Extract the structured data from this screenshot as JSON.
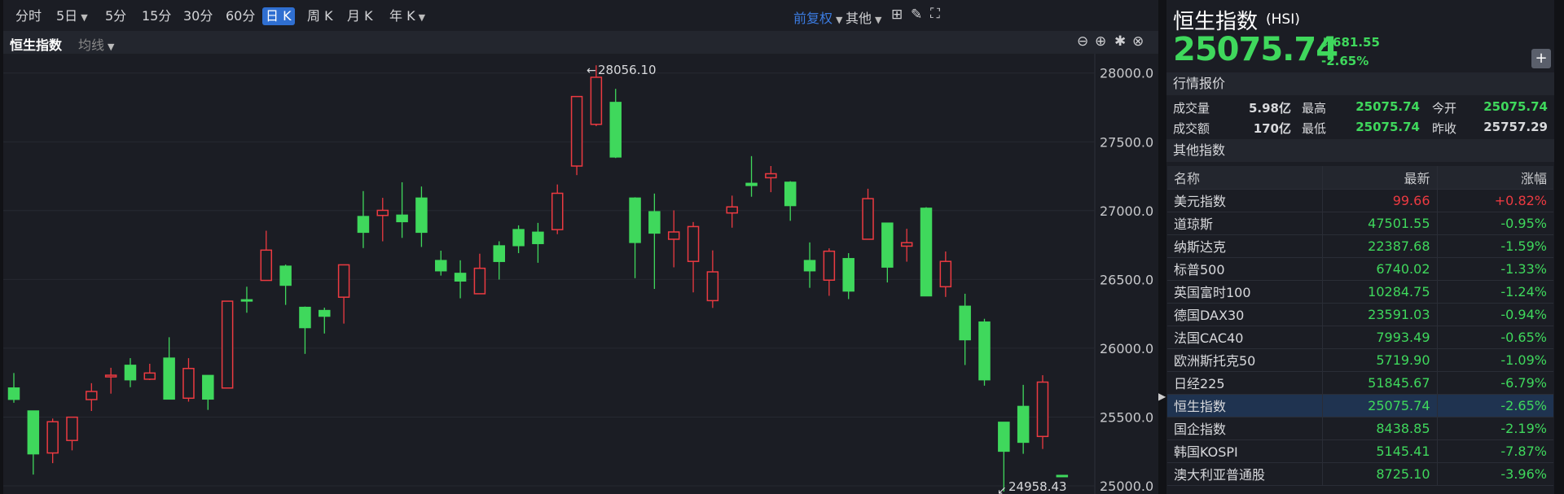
{
  "toolbar": {
    "periods": [
      {
        "label": "分时"
      },
      {
        "label": "5日",
        "dropdown": true
      },
      {
        "label": "5分"
      },
      {
        "label": "15分"
      },
      {
        "label": "30分"
      },
      {
        "label": "60分"
      },
      {
        "label": "日 K",
        "active": true
      },
      {
        "label": "周 K"
      },
      {
        "label": "月 K"
      },
      {
        "label": "年 K",
        "dropdown": true
      }
    ],
    "adjust": "前复权",
    "other": "其他",
    "icons": [
      "layout-grid-icon",
      "pen-icon",
      "fullscreen-icon"
    ]
  },
  "subbar": {
    "title": "恒生指数",
    "indicator": "均线",
    "icons": [
      "zoom-out-icon",
      "zoom-in-icon",
      "settings-icon",
      "close-icon"
    ]
  },
  "colors": {
    "up": "#ec3a41",
    "down": "#3fd85c",
    "accent": "#2f6fd1"
  },
  "chart_data": {
    "type": "candlestick",
    "ylim": [
      24950,
      28100
    ],
    "yticks": [
      "28000.0",
      "27500.0",
      "27000.0",
      "26500.0",
      "26000.0",
      "25500.0",
      "25000.0"
    ],
    "ytick_values": [
      28000,
      27500,
      27000,
      26500,
      26000,
      25500,
      25000
    ],
    "grid": true,
    "max_label": "28056.10",
    "min_label": "24958.43",
    "ohlc": [
      [
        25711,
        25820,
        25604,
        25629
      ],
      [
        25544,
        25544,
        25082,
        25233
      ],
      [
        25239,
        25489,
        25165,
        25466
      ],
      [
        25330,
        25501,
        25258,
        25499
      ],
      [
        25627,
        25746,
        25544,
        25686
      ],
      [
        25792,
        25858,
        25670,
        25804
      ],
      [
        25876,
        25928,
        25717,
        25771
      ],
      [
        25775,
        25887,
        25769,
        25820
      ],
      [
        25928,
        26080,
        25631,
        25631
      ],
      [
        25637,
        25928,
        25612,
        25853
      ],
      [
        25802,
        25804,
        25552,
        25631
      ],
      [
        25711,
        26342,
        25711,
        26342
      ],
      [
        26352,
        26447,
        26258,
        26348
      ],
      [
        26493,
        26854,
        26493,
        26713
      ],
      [
        26596,
        26608,
        26315,
        26458
      ],
      [
        26297,
        26303,
        25959,
        26150
      ],
      [
        26274,
        26295,
        26107,
        26233
      ],
      [
        26371,
        26606,
        26179,
        26606
      ],
      [
        26957,
        27142,
        26728,
        26843
      ],
      [
        26965,
        27093,
        26777,
        27002
      ],
      [
        26967,
        27206,
        26802,
        26920
      ],
      [
        27091,
        27175,
        26736,
        26843
      ],
      [
        26637,
        26709,
        26528,
        26563
      ],
      [
        26544,
        26639,
        26363,
        26489
      ],
      [
        26396,
        26687,
        26396,
        26581
      ],
      [
        26744,
        26777,
        26499,
        26631
      ],
      [
        26862,
        26893,
        26691,
        26746
      ],
      [
        26843,
        26911,
        26621,
        26761
      ],
      [
        26862,
        27190,
        26829,
        27126
      ],
      [
        27324,
        27829,
        27258,
        27829
      ],
      [
        27627,
        28056.1,
        27614,
        27969
      ],
      [
        27786,
        27885,
        27382,
        27390
      ],
      [
        27091,
        27097,
        26509,
        26769
      ],
      [
        26992,
        27124,
        26431,
        26837
      ],
      [
        26792,
        27002,
        26588,
        26845
      ],
      [
        26631,
        26917,
        26406,
        26884
      ],
      [
        26346,
        26711,
        26293,
        26555
      ],
      [
        26983,
        27109,
        26876,
        27027
      ],
      [
        27198,
        27396,
        27101,
        27183
      ],
      [
        27239,
        27324,
        27134,
        27268
      ],
      [
        27206,
        27214,
        26926,
        27037
      ],
      [
        26637,
        26769,
        26439,
        26563
      ],
      [
        26495,
        26726,
        26381,
        26705
      ],
      [
        26651,
        26691,
        26357,
        26416
      ],
      [
        26792,
        27159,
        26792,
        27087
      ],
      [
        26909,
        26911,
        26478,
        26590
      ],
      [
        26742,
        26868,
        26629,
        26767
      ],
      [
        27017,
        27025,
        26381,
        26381
      ],
      [
        26447,
        26703,
        26373,
        26631
      ],
      [
        26305,
        26396,
        25878,
        26062
      ],
      [
        26190,
        26214,
        25728,
        25771
      ],
      [
        25462,
        25462,
        24958.43,
        25252
      ],
      [
        25577,
        25734,
        25233,
        25317
      ],
      [
        25359,
        25804,
        25268,
        25754
      ],
      [
        25075.74,
        25075.74,
        25075.74,
        25075.74
      ]
    ]
  },
  "quote": {
    "name": "恒生指数",
    "code": "(HSI)",
    "price": "25075.74",
    "change": "-681.55",
    "change_pct": "-2.65%",
    "add": "+"
  },
  "market": {
    "title": "行情报价",
    "rows": [
      [
        {
          "k": "成交量",
          "v": "5.98亿"
        },
        {
          "k": "最高",
          "v": "25075.74"
        },
        {
          "k": "今开",
          "v": "25075.74"
        }
      ],
      [
        {
          "k": "成交额",
          "v": "170亿"
        },
        {
          "k": "最低",
          "v": "25075.74"
        },
        {
          "k": "昨收",
          "v": "25757.29"
        }
      ]
    ]
  },
  "others": {
    "title": "其他指数",
    "headers": [
      "名称",
      "最新",
      "涨幅"
    ],
    "rows": [
      [
        "美元指数",
        "99.66",
        "+0.82%"
      ],
      [
        "道琼斯",
        "47501.55",
        "-0.95%"
      ],
      [
        "纳斯达克",
        "22387.68",
        "-1.59%"
      ],
      [
        "标普500",
        "6740.02",
        "-1.33%"
      ],
      [
        "英国富时100",
        "10284.75",
        "-1.24%"
      ],
      [
        "德国DAX30",
        "23591.03",
        "-0.94%"
      ],
      [
        "法国CAC40",
        "7993.49",
        "-0.65%"
      ],
      [
        "欧洲斯托克50",
        "5719.90",
        "-1.09%"
      ],
      [
        "日经225",
        "51845.67",
        "-6.79%"
      ],
      [
        "恒生指数",
        "25075.74",
        "-2.65%"
      ],
      [
        "国企指数",
        "8438.85",
        "-2.19%"
      ],
      [
        "韩国KOSPI",
        "5145.41",
        "-7.87%"
      ],
      [
        "澳大利亚普通股",
        "8725.10",
        "-3.96%"
      ]
    ],
    "highlight": "恒生指数"
  }
}
